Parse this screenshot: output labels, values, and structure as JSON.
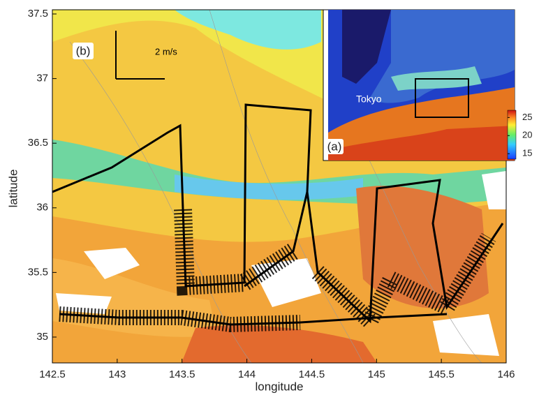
{
  "chart_data": {
    "type": "map",
    "xlabel": "longitude",
    "ylabel": "latitude",
    "xlim": [
      142.5,
      146
    ],
    "ylim": [
      34.8,
      37.5
    ],
    "xticks": [
      142.5,
      143,
      143.5,
      144,
      144.5,
      145,
      145.5,
      146
    ],
    "yticks": [
      35,
      35.5,
      36,
      36.5,
      37,
      37.5
    ],
    "annotations": [
      "(b)",
      "2 m/s"
    ],
    "inset": {
      "annotations": [
        "(a)",
        "Tokyo"
      ],
      "clim": [
        13.5,
        27
      ],
      "cticks": [
        15,
        20,
        25
      ]
    }
  }
}
